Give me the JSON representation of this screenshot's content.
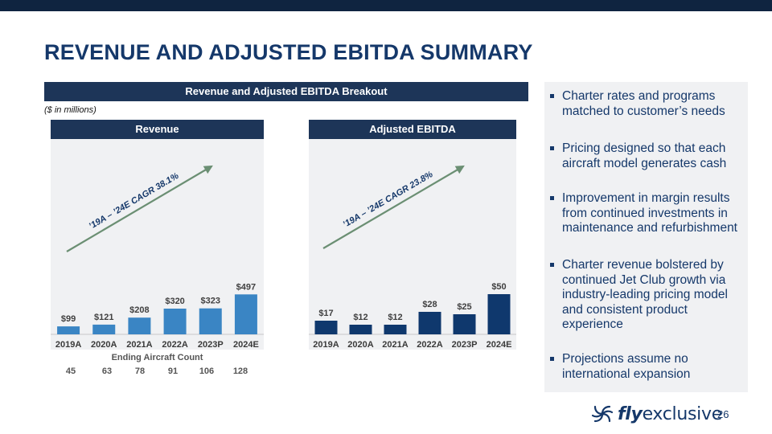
{
  "title": "REVENUE AND ADJUSTED EBITDA SUMMARY",
  "breakout_header": "Revenue and Adjusted EBITDA Breakout",
  "units_note": "($ in millions)",
  "chart_data": [
    {
      "type": "bar",
      "title": "Revenue",
      "categories": [
        "2019A",
        "2020A",
        "2021A",
        "2022A",
        "2023P",
        "2024E"
      ],
      "values": [
        99,
        121,
        208,
        320,
        323,
        497
      ],
      "labels": [
        "$99",
        "$121",
        "$208",
        "$320",
        "$323",
        "$497"
      ],
      "ylim": [
        0,
        520
      ],
      "color": "#3a85c4",
      "annotation": "’19A – ’24E CAGR 38.1%",
      "grid": false
    },
    {
      "type": "bar",
      "title": "Adjusted EBITDA",
      "categories": [
        "2019A",
        "2020A",
        "2021A",
        "2022A",
        "2023P",
        "2024E"
      ],
      "values": [
        17,
        12,
        12,
        28,
        25,
        50
      ],
      "labels": [
        "$17",
        "$12",
        "$12",
        "$28",
        "$25",
        "$50"
      ],
      "ylim": [
        0,
        52
      ],
      "color": "#0f386d",
      "annotation": "’19A – ’24E CAGR 23.8%",
      "grid": false
    }
  ],
  "aircraft": {
    "title": "Ending Aircraft Count",
    "values": [
      "45",
      "63",
      "78",
      "91",
      "106",
      "128"
    ]
  },
  "bullets": [
    "Charter rates and programs matched to customer’s needs",
    "Pricing designed so that each aircraft model generates cash",
    "Improvement in margin results from continued investments in maintenance and refurbishment",
    "Charter revenue bolstered by continued Jet Club growth via industry-leading pricing model and consistent product experience",
    "Projections assume no international expansion"
  ],
  "logo": {
    "fly": "fly",
    "rest": "exclusive"
  },
  "page_number": "26",
  "colors": {
    "navy": "#1d3558",
    "title_blue": "#15386a",
    "arrow_green": "#6b8f73"
  }
}
